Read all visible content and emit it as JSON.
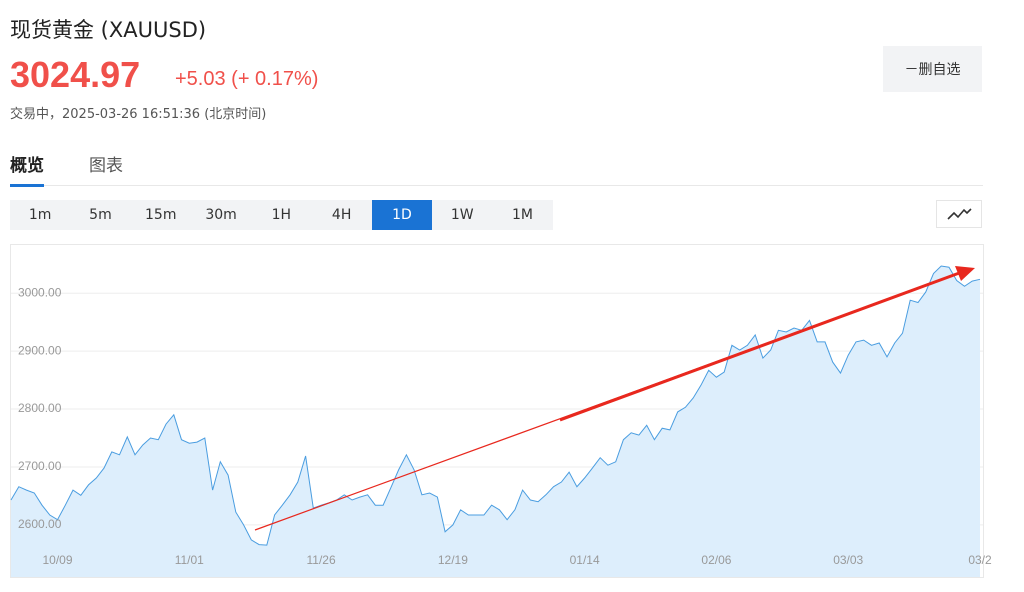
{
  "header": {
    "title": "现货黄金 (XAUUSD)",
    "price": "3024.97",
    "change": "+5.03 (+ 0.17%)",
    "status": "交易中，2025-03-26 16:51:36 (北京时间)",
    "watchlist_button": "－删自选"
  },
  "tabs": [
    "概览",
    "图表"
  ],
  "active_tab": 0,
  "timeframes": [
    "1m",
    "5m",
    "15m",
    "30m",
    "1H",
    "4H",
    "1D",
    "1W",
    "1M"
  ],
  "active_timeframe": 6,
  "chart_data": {
    "type": "area",
    "color": "#4a9de0",
    "fill": "#ddeefc",
    "grid": true,
    "ylim": [
      2510,
      3085
    ],
    "yticks": [
      {
        "value": 2600,
        "label": "2600.00"
      },
      {
        "value": 2700,
        "label": "2700.00"
      },
      {
        "value": 2800,
        "label": "2800.00"
      },
      {
        "value": 2900,
        "label": "2900.00"
      },
      {
        "value": 3000,
        "label": "3000.00"
      }
    ],
    "categories": [
      null,
      null,
      null,
      null,
      null,
      null,
      "10/09",
      null,
      null,
      null,
      null,
      null,
      null,
      null,
      null,
      null,
      null,
      null,
      null,
      null,
      null,
      null,
      null,
      "11/01",
      null,
      null,
      null,
      null,
      null,
      null,
      null,
      null,
      null,
      null,
      null,
      null,
      null,
      null,
      null,
      null,
      "11/26",
      null,
      null,
      null,
      null,
      null,
      null,
      null,
      null,
      null,
      null,
      null,
      null,
      null,
      null,
      null,
      null,
      "12/19",
      null,
      null,
      null,
      null,
      null,
      null,
      null,
      null,
      null,
      null,
      null,
      null,
      null,
      null,
      null,
      null,
      "01/14",
      null,
      null,
      null,
      null,
      null,
      null,
      null,
      null,
      null,
      null,
      null,
      null,
      null,
      null,
      null,
      null,
      "02/06",
      null,
      null,
      null,
      null,
      null,
      null,
      null,
      null,
      null,
      null,
      null,
      null,
      null,
      null,
      null,
      null,
      "03/03",
      null,
      null,
      null,
      null,
      null,
      null,
      null,
      null,
      null,
      null,
      null,
      null,
      null,
      null,
      null,
      null,
      "03/2"
    ],
    "values": [
      2643,
      2666,
      2660,
      2655,
      2634,
      2617,
      2609,
      2634,
      2660,
      2651,
      2669,
      2681,
      2698,
      2726,
      2721,
      2752,
      2721,
      2738,
      2750,
      2747,
      2774,
      2790,
      2747,
      2741,
      2743,
      2750,
      2660,
      2709,
      2686,
      2622,
      2600,
      2574,
      2566,
      2565,
      2617,
      2634,
      2652,
      2674,
      2719,
      2629,
      2634,
      2638,
      2643,
      2652,
      2643,
      2648,
      2652,
      2634,
      2634,
      2664,
      2695,
      2721,
      2695,
      2652,
      2655,
      2648,
      2588,
      2600,
      2626,
      2617,
      2617,
      2617,
      2634,
      2626,
      2609,
      2626,
      2660,
      2643,
      2640,
      2652,
      2666,
      2674,
      2691,
      2666,
      2681,
      2698,
      2716,
      2703,
      2709,
      2747,
      2759,
      2755,
      2772,
      2747,
      2767,
      2764,
      2795,
      2803,
      2819,
      2841,
      2867,
      2855,
      2864,
      2910,
      2902,
      2910,
      2928,
      2888,
      2902,
      2936,
      2933,
      2940,
      2936,
      2953,
      2916,
      2916,
      2881,
      2862,
      2893,
      2916,
      2919,
      2910,
      2914,
      2890,
      2914,
      2931,
      2988,
      2984,
      3002,
      3034,
      3047,
      3045,
      3022,
      3012,
      3021,
      3024
    ]
  }
}
